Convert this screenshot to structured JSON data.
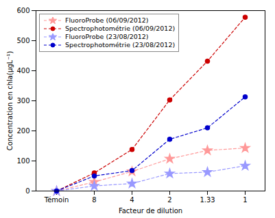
{
  "chart_data": {
    "type": "line",
    "categories": [
      "Témoin",
      "8",
      "4",
      "2",
      "1.33",
      "1"
    ],
    "xlabel": "Facteur de dilution",
    "ylabel": "Concentration en chla(µgL⁻¹)",
    "ylim": [
      0,
      600
    ],
    "yticks": [
      0,
      100,
      200,
      300,
      400,
      500,
      600
    ],
    "grid": false,
    "legend": "upper left",
    "series": [
      {
        "name": "FluoroProbe (06/09/2012)",
        "color": "#FF9999",
        "marker": "star",
        "line_style": "dashed",
        "values": [
          0,
          30,
          65,
          107,
          135,
          143
        ]
      },
      {
        "name": "Spectrophotométrie (06/09/2012)",
        "color": "#CC0000",
        "marker": "circle",
        "line_style": "dashed",
        "values": [
          0,
          60,
          138,
          303,
          432,
          578
        ]
      },
      {
        "name": "FluoroProbe (23/08/2012)",
        "color": "#9999FF",
        "marker": "star",
        "line_style": "dashed",
        "values": [
          0,
          17,
          25,
          58,
          63,
          84
        ]
      },
      {
        "name": "Spectrophotométrie (23/08/2012)",
        "color": "#0000CC",
        "marker": "circle",
        "line_style": "dashed",
        "values": [
          0,
          50,
          68,
          172,
          210,
          313
        ]
      }
    ]
  }
}
